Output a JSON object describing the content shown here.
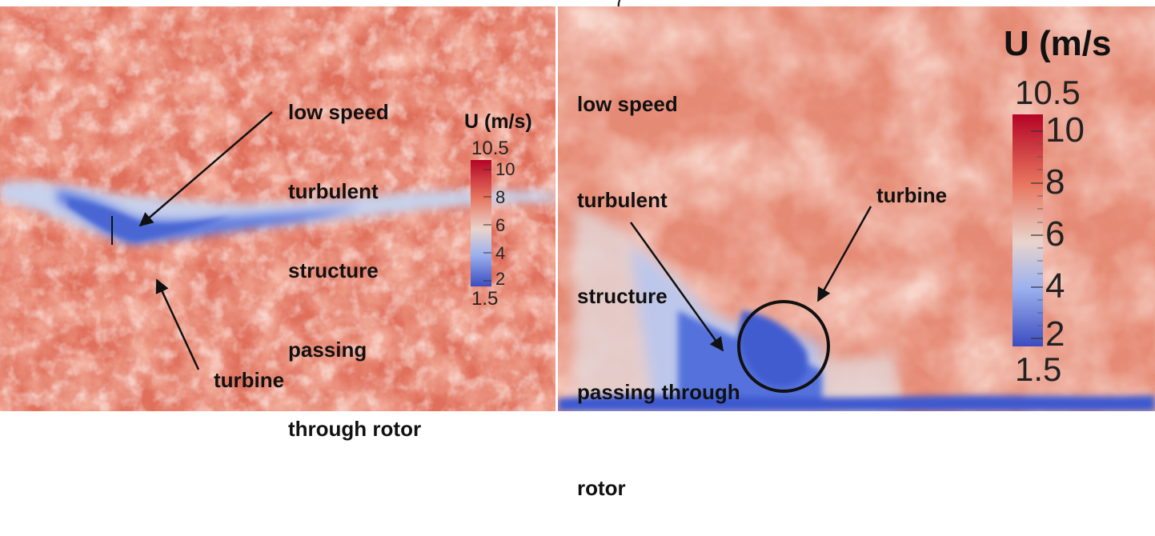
{
  "left_panel": {
    "annotation_lines": [
      "low speed",
      "turbulent",
      "structure",
      "passing",
      "through rotor"
    ],
    "turbine_label": "turbine",
    "colorbar": {
      "title": "U (m/s)",
      "max_label": "10.5",
      "min_label": "1.5",
      "ticks": [
        "10",
        "8",
        "6",
        "4",
        "2"
      ]
    }
  },
  "right_panel": {
    "annotation_lines": [
      "low speed",
      "turbulent",
      "structure",
      "passing through",
      "rotor"
    ],
    "turbine_label": "turbine",
    "colorbar": {
      "title": "U (m/s",
      "max_label": "10.5",
      "min_label": "1.5",
      "ticks": [
        "10",
        "8",
        "6",
        "4",
        "2"
      ]
    }
  },
  "colors": {
    "high_speed": "#e06a55",
    "mid_speed": "#f0d8d0",
    "low_speed": "#4f6fd8",
    "colormap_top": "#b40426",
    "colormap_mid": "#dddddd",
    "colormap_bottom": "#3b4cc0"
  }
}
